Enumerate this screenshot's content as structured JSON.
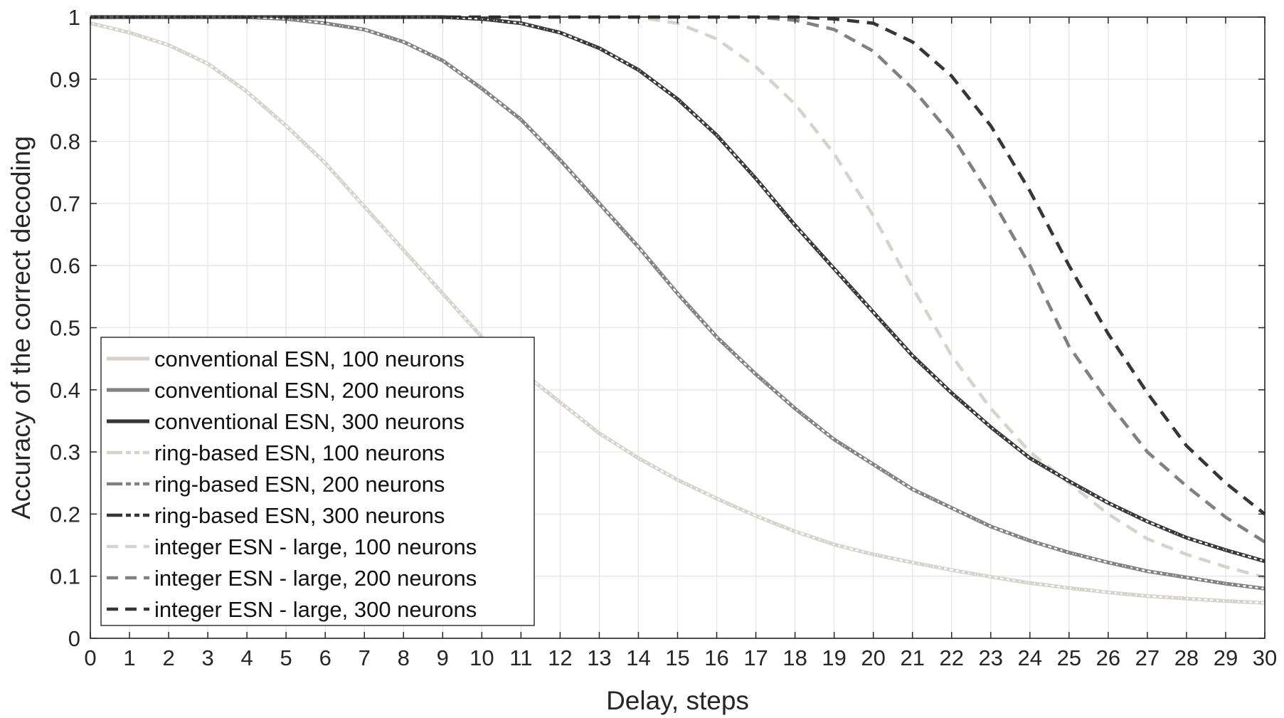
{
  "chart_data": {
    "type": "line",
    "xlabel": "Delay, steps",
    "ylabel": "Accuracy of the correct decoding",
    "xlim": [
      0,
      30
    ],
    "ylim": [
      0,
      1
    ],
    "x_ticks": [
      0,
      1,
      2,
      3,
      4,
      5,
      6,
      7,
      8,
      9,
      10,
      11,
      12,
      13,
      14,
      15,
      16,
      17,
      18,
      19,
      20,
      21,
      22,
      23,
      24,
      25,
      26,
      27,
      28,
      29,
      30
    ],
    "y_ticks": [
      0,
      0.1,
      0.2,
      0.3,
      0.4,
      0.5,
      0.6,
      0.7,
      0.8,
      0.9,
      1
    ],
    "y_tick_labels": [
      "0",
      "0.1",
      "0.2",
      "0.3",
      "0.4",
      "0.5",
      "0.6",
      "0.7",
      "0.8",
      "0.9",
      "1"
    ],
    "grid": true,
    "box": true,
    "legend_position": "bottom-left",
    "x": [
      0,
      1,
      2,
      3,
      4,
      5,
      6,
      7,
      8,
      9,
      10,
      11,
      12,
      13,
      14,
      15,
      16,
      17,
      18,
      19,
      20,
      21,
      22,
      23,
      24,
      25,
      26,
      27,
      28,
      29,
      30
    ],
    "series": [
      {
        "name": "conventional ESN, 100 neurons",
        "color": "#d6d3cd",
        "style": "solid",
        "values": [
          0.99,
          0.975,
          0.955,
          0.925,
          0.88,
          0.825,
          0.765,
          0.695,
          0.625,
          0.555,
          0.485,
          0.43,
          0.38,
          0.33,
          0.29,
          0.255,
          0.225,
          0.197,
          0.172,
          0.151,
          0.135,
          0.122,
          0.11,
          0.099,
          0.089,
          0.081,
          0.074,
          0.068,
          0.064,
          0.06,
          0.057
        ]
      },
      {
        "name": "conventional ESN, 200 neurons",
        "color": "#818181",
        "style": "solid",
        "values": [
          1,
          1,
          1,
          1,
          1,
          0.997,
          0.99,
          0.98,
          0.96,
          0.93,
          0.885,
          0.835,
          0.77,
          0.7,
          0.63,
          0.555,
          0.485,
          0.425,
          0.37,
          0.32,
          0.28,
          0.24,
          0.21,
          0.18,
          0.157,
          0.138,
          0.122,
          0.108,
          0.098,
          0.088,
          0.08
        ]
      },
      {
        "name": "conventional ESN, 300 neurons",
        "color": "#363636",
        "style": "solid",
        "values": [
          1,
          1,
          1,
          1,
          1,
          1,
          1,
          1,
          1,
          1,
          0.997,
          0.99,
          0.975,
          0.95,
          0.915,
          0.868,
          0.81,
          0.74,
          0.665,
          0.595,
          0.525,
          0.455,
          0.395,
          0.34,
          0.29,
          0.253,
          0.218,
          0.188,
          0.162,
          0.142,
          0.124
        ]
      },
      {
        "name": "ring-based ESN, 100 neurons",
        "color": "#d6d3cd",
        "style": "dotted",
        "values": [
          0.99,
          0.975,
          0.955,
          0.925,
          0.88,
          0.825,
          0.765,
          0.695,
          0.625,
          0.555,
          0.485,
          0.43,
          0.38,
          0.33,
          0.29,
          0.255,
          0.225,
          0.197,
          0.172,
          0.151,
          0.135,
          0.122,
          0.11,
          0.099,
          0.089,
          0.081,
          0.074,
          0.068,
          0.064,
          0.06,
          0.057
        ]
      },
      {
        "name": "ring-based ESN, 200 neurons",
        "color": "#818181",
        "style": "dotted",
        "values": [
          1,
          1,
          1,
          1,
          1,
          0.997,
          0.99,
          0.98,
          0.96,
          0.93,
          0.885,
          0.835,
          0.77,
          0.7,
          0.63,
          0.555,
          0.485,
          0.425,
          0.37,
          0.32,
          0.28,
          0.24,
          0.21,
          0.18,
          0.157,
          0.138,
          0.122,
          0.108,
          0.098,
          0.088,
          0.08
        ]
      },
      {
        "name": "ring-based ESN, 300 neurons",
        "color": "#363636",
        "style": "dotted",
        "values": [
          1,
          1,
          1,
          1,
          1,
          1,
          1,
          1,
          1,
          1,
          0.997,
          0.99,
          0.975,
          0.95,
          0.915,
          0.868,
          0.81,
          0.74,
          0.665,
          0.595,
          0.525,
          0.455,
          0.395,
          0.34,
          0.29,
          0.253,
          0.218,
          0.188,
          0.162,
          0.142,
          0.124
        ]
      },
      {
        "name": "integer ESN - large, 100 neurons",
        "color": "#d6d3cd",
        "style": "dashed",
        "values": [
          1,
          1,
          1,
          1,
          1,
          1,
          1,
          1,
          1,
          1,
          1,
          1,
          1,
          1,
          1,
          0.99,
          0.965,
          0.92,
          0.86,
          0.78,
          0.68,
          0.565,
          0.455,
          0.37,
          0.3,
          0.25,
          0.2,
          0.16,
          0.135,
          0.115,
          0.098
        ]
      },
      {
        "name": "integer ESN - large, 200 neurons",
        "color": "#818181",
        "style": "dashed",
        "values": [
          1,
          1,
          1,
          1,
          1,
          1,
          1,
          1,
          1,
          1,
          1,
          1,
          1,
          1,
          1,
          1,
          1,
          1,
          0.995,
          0.98,
          0.945,
          0.885,
          0.81,
          0.71,
          0.6,
          0.47,
          0.38,
          0.3,
          0.245,
          0.195,
          0.155
        ]
      },
      {
        "name": "integer ESN - large, 300 neurons",
        "color": "#363636",
        "style": "dashed",
        "values": [
          1,
          1,
          1,
          1,
          1,
          1,
          1,
          1,
          1,
          1,
          1,
          1,
          1,
          1,
          1,
          1,
          1,
          1,
          1,
          0.997,
          0.99,
          0.96,
          0.905,
          0.825,
          0.72,
          0.6,
          0.49,
          0.395,
          0.31,
          0.25,
          0.2
        ]
      }
    ]
  }
}
